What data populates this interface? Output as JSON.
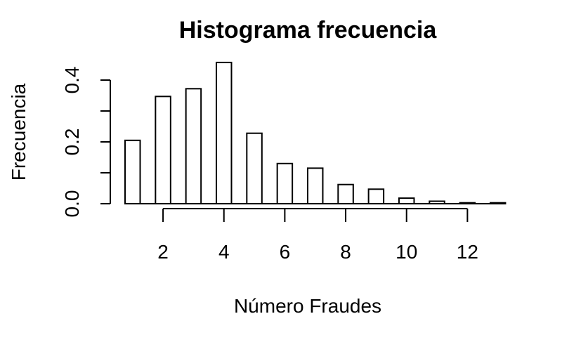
{
  "chart_data": {
    "type": "bar",
    "title": "Histograma frecuencia",
    "xlabel": "Número Fraudes",
    "ylabel": "Frecuencia",
    "x_ticks": [
      2,
      4,
      6,
      8,
      10,
      12
    ],
    "x_tick_labels": [
      "2",
      "4",
      "6",
      "8",
      "10",
      "12"
    ],
    "y_ticks": [
      0.0,
      0.2,
      0.4
    ],
    "y_tick_labels": [
      "0.0",
      "0.2",
      "0.4"
    ],
    "ylim": [
      0,
      0.46
    ],
    "xlim": [
      1,
      13
    ],
    "bars": [
      {
        "x": 1,
        "value": 0.205
      },
      {
        "x": 2,
        "value": 0.347
      },
      {
        "x": 3,
        "value": 0.372
      },
      {
        "x": 4,
        "value": 0.457
      },
      {
        "x": 5,
        "value": 0.228
      },
      {
        "x": 6,
        "value": 0.13
      },
      {
        "x": 7,
        "value": 0.115
      },
      {
        "x": 8,
        "value": 0.062
      },
      {
        "x": 9,
        "value": 0.047
      },
      {
        "x": 10,
        "value": 0.018
      },
      {
        "x": 11,
        "value": 0.008
      },
      {
        "x": 12,
        "value": 0.003
      },
      {
        "x": 13,
        "value": 0.003
      }
    ],
    "grid": false,
    "legend": "none"
  }
}
